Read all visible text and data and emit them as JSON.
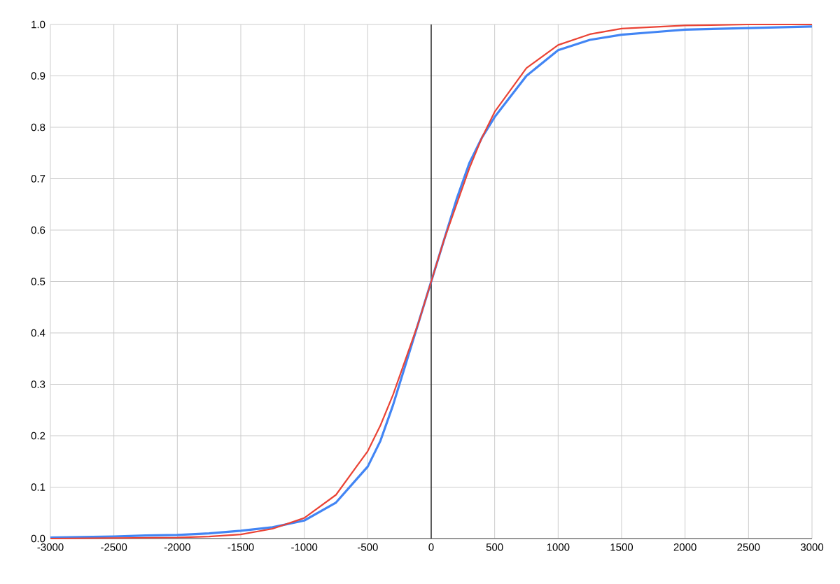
{
  "chart_data": {
    "type": "line",
    "xlim": [
      -3000,
      3000
    ],
    "ylim": [
      0,
      1
    ],
    "xticks": [
      -3000,
      -2500,
      -2000,
      -1500,
      -1000,
      -500,
      0,
      500,
      1000,
      1500,
      2000,
      2500,
      3000
    ],
    "yticks": [
      {
        "value": 0,
        "label": "0.0"
      },
      0.1,
      0.2,
      0.3,
      0.4,
      0.5,
      0.6,
      0.7,
      0.8,
      0.9,
      {
        "value": 1,
        "label": "1.0"
      }
    ],
    "grid": true,
    "marker": "none",
    "line_style": "solid",
    "ref_lines": [
      {
        "axis": "x",
        "value": 0,
        "color": "#000000"
      }
    ],
    "series": [
      {
        "color": "#4285f4",
        "x": [
          -3000,
          -2750,
          -2500,
          -2250,
          -2000,
          -1750,
          -1500,
          -1250,
          -1000,
          -750,
          -500,
          -400,
          -300,
          -200,
          -100,
          0,
          100,
          200,
          300,
          400,
          500,
          750,
          1000,
          1250,
          1500,
          1750,
          2000,
          2500,
          3000
        ],
        "values": [
          0.002,
          0.003,
          0.004,
          0.006,
          0.007,
          0.01,
          0.015,
          0.022,
          0.035,
          0.07,
          0.14,
          0.19,
          0.26,
          0.34,
          0.42,
          0.5,
          0.58,
          0.66,
          0.73,
          0.78,
          0.82,
          0.9,
          0.95,
          0.97,
          0.98,
          0.985,
          0.99,
          0.993,
          0.996
        ]
      },
      {
        "color": "#ea4335",
        "x": [
          -3000,
          -2500,
          -2000,
          -1750,
          -1500,
          -1250,
          -1000,
          -750,
          -500,
          -400,
          -300,
          -200,
          -100,
          0,
          100,
          200,
          300,
          400,
          500,
          750,
          1000,
          1250,
          1500,
          2000,
          2500,
          3000
        ],
        "values": [
          0.0,
          0.001,
          0.002,
          0.004,
          0.008,
          0.019,
          0.04,
          0.085,
          0.17,
          0.22,
          0.28,
          0.35,
          0.42,
          0.5,
          0.58,
          0.65,
          0.72,
          0.78,
          0.83,
          0.915,
          0.96,
          0.981,
          0.992,
          0.998,
          1.0,
          1.0
        ]
      }
    ]
  }
}
